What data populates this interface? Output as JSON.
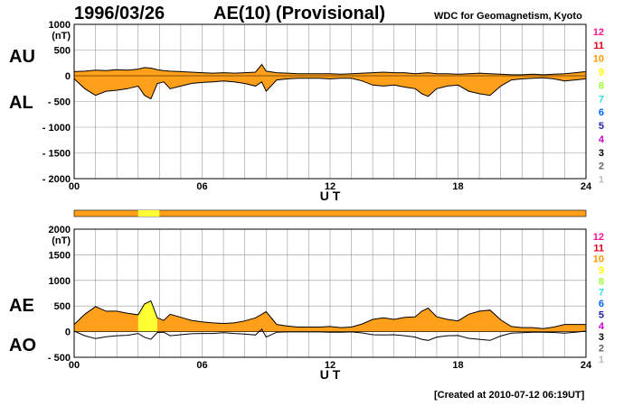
{
  "header": {
    "date": "1996/03/26",
    "title": "AE(10) (Provisional)",
    "source": "WDC for Geomagnetism, Kyoto",
    "created": "[Created at 2010-07-12 06:19UT]"
  },
  "colors": {
    "fill": "#ff9f1a",
    "highlight": "#ffff33",
    "grid": "#999999",
    "line": "#000000"
  },
  "levels": [
    {
      "label": "12",
      "color": "#ff1493"
    },
    {
      "label": "11",
      "color": "#e0001a"
    },
    {
      "label": "10",
      "color": "#ff9900"
    },
    {
      "label": "9",
      "color": "#ffff00"
    },
    {
      "label": "8",
      "color": "#99ff33"
    },
    {
      "label": "7",
      "color": "#33dddd"
    },
    {
      "label": "6",
      "color": "#0066ff"
    },
    {
      "label": "5",
      "color": "#2222aa"
    },
    {
      "label": "4",
      "color": "#cc00cc"
    },
    {
      "label": "3",
      "color": "#000000"
    },
    {
      "label": "2",
      "color": "#666666"
    },
    {
      "label": "1",
      "color": "#bbbbbb"
    }
  ],
  "chart_data": [
    {
      "type": "area",
      "name": "au-al-panel",
      "series_labels": [
        "AU",
        "AL"
      ],
      "ylabel": "(nT)",
      "ylim": [
        -2000,
        1000
      ],
      "yticks": [
        1000,
        500,
        0,
        -500,
        -1000,
        -1500,
        -2000
      ],
      "ytick_labels": [
        "1000",
        "500",
        "0",
        "- 500",
        "- 1000",
        "- 1500",
        "- 2000"
      ],
      "xlim": [
        0,
        24
      ],
      "xticks": [
        0,
        6,
        12,
        18,
        24
      ],
      "xtick_labels": [
        "00",
        "06",
        "12",
        "18",
        "24"
      ],
      "xlabel": "U T",
      "grid": true,
      "x": [
        0,
        0.5,
        1,
        1.5,
        2,
        2.5,
        3,
        3.3,
        3.6,
        3.9,
        4.2,
        4.5,
        5,
        5.5,
        6,
        6.5,
        7,
        7.5,
        8,
        8.5,
        8.8,
        9,
        9.5,
        10,
        10.5,
        11,
        11.5,
        12,
        12.5,
        13,
        13.5,
        14,
        14.5,
        15,
        15.5,
        16,
        16.3,
        16.6,
        17,
        17.5,
        18,
        18.5,
        19,
        19.5,
        20,
        20.5,
        21,
        21.5,
        22,
        22.5,
        23,
        23.5,
        24
      ],
      "au": [
        80,
        90,
        110,
        100,
        120,
        110,
        130,
        160,
        150,
        120,
        100,
        90,
        80,
        70,
        60,
        50,
        60,
        50,
        60,
        70,
        220,
        90,
        60,
        50,
        40,
        40,
        40,
        40,
        30,
        40,
        50,
        60,
        70,
        60,
        60,
        40,
        50,
        60,
        40,
        40,
        30,
        40,
        50,
        40,
        30,
        20,
        20,
        30,
        20,
        30,
        40,
        60,
        80
      ],
      "al": [
        -60,
        -250,
        -380,
        -300,
        -280,
        -250,
        -200,
        -380,
        -450,
        -150,
        -120,
        -250,
        -200,
        -150,
        -130,
        -120,
        -100,
        -120,
        -150,
        -200,
        -120,
        -300,
        -80,
        -60,
        -50,
        -50,
        -50,
        -60,
        -50,
        -50,
        -100,
        -180,
        -200,
        -180,
        -220,
        -250,
        -350,
        -400,
        -250,
        -200,
        -180,
        -300,
        -350,
        -380,
        -200,
        -80,
        -60,
        -50,
        -40,
        -60,
        -100,
        -80,
        -60
      ]
    },
    {
      "type": "area",
      "name": "ae-ao-panel",
      "series_labels": [
        "AE",
        "AO"
      ],
      "ylabel": "(nT)",
      "ylim": [
        -500,
        2000
      ],
      "yticks": [
        2000,
        1500,
        1000,
        500,
        0,
        -500
      ],
      "ytick_labels": [
        "2000",
        "1500",
        "1000",
        "500",
        "0",
        "- 500"
      ],
      "xlim": [
        0,
        24
      ],
      "xticks": [
        0,
        6,
        12,
        18,
        24
      ],
      "xtick_labels": [
        "00",
        "06",
        "12",
        "18",
        "24"
      ],
      "xlabel": "U T",
      "grid": true,
      "highlight_intervals": [
        [
          3.0,
          4.0
        ]
      ],
      "x": [
        0,
        0.5,
        1,
        1.5,
        2,
        2.5,
        3,
        3.3,
        3.6,
        3.9,
        4.2,
        4.5,
        5,
        5.5,
        6,
        6.5,
        7,
        7.5,
        8,
        8.5,
        8.8,
        9,
        9.5,
        10,
        10.5,
        11,
        11.5,
        12,
        12.5,
        13,
        13.5,
        14,
        14.5,
        15,
        15.5,
        16,
        16.3,
        16.6,
        17,
        17.5,
        18,
        18.5,
        19,
        19.5,
        20,
        20.5,
        21,
        21.5,
        22,
        22.5,
        23,
        23.5,
        24
      ],
      "ae": [
        140,
        340,
        490,
        400,
        400,
        360,
        330,
        540,
        600,
        270,
        220,
        340,
        280,
        220,
        190,
        170,
        160,
        170,
        210,
        270,
        340,
        390,
        140,
        110,
        90,
        90,
        90,
        100,
        80,
        90,
        150,
        240,
        270,
        240,
        280,
        290,
        400,
        460,
        290,
        240,
        210,
        340,
        400,
        420,
        230,
        100,
        80,
        80,
        60,
        90,
        140,
        140,
        140
      ],
      "ao": [
        10,
        -80,
        -135,
        -100,
        -80,
        -70,
        -35,
        -110,
        -150,
        -15,
        -10,
        -80,
        -60,
        -40,
        -35,
        -35,
        -20,
        -35,
        -45,
        -65,
        50,
        -105,
        -10,
        -5,
        -5,
        -5,
        -5,
        -10,
        -10,
        -5,
        -25,
        -60,
        -65,
        -60,
        -80,
        -105,
        -150,
        -170,
        -105,
        -80,
        -75,
        -130,
        -150,
        -170,
        -85,
        -30,
        -20,
        -10,
        -10,
        -15,
        -30,
        -10,
        10
      ]
    }
  ]
}
